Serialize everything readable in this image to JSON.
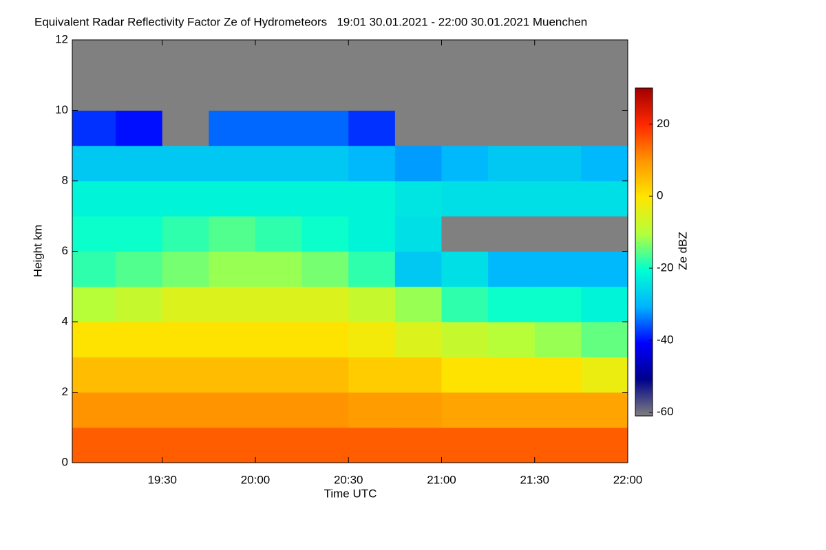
{
  "chart_data": {
    "type": "heatmap",
    "title": "Equivalent Radar Reflectivity Factor Ze of Hydrometeors   19:01 30.01.2021 - 22:00 30.01.2021 Muenchen",
    "xlabel": "Time UTC",
    "ylabel": "Height km",
    "colorbar_label": "Ze dBZ",
    "x_bins": [
      "19:01",
      "19:15",
      "19:30",
      "19:45",
      "20:00",
      "20:15",
      "20:30",
      "20:45",
      "21:00",
      "21:15",
      "21:30",
      "21:45",
      "22:00"
    ],
    "y_bins": [
      0,
      1,
      2,
      3,
      4,
      5,
      6,
      7,
      8,
      9,
      10,
      11,
      12
    ],
    "values": [
      [
        15,
        15,
        15,
        15,
        15,
        15,
        15,
        15,
        15,
        15,
        15,
        15
      ],
      [
        10,
        10,
        10,
        10,
        10,
        10,
        9,
        9,
        8,
        8,
        8,
        8
      ],
      [
        5,
        5,
        5,
        5,
        5,
        5,
        3,
        3,
        0,
        0,
        0,
        -3
      ],
      [
        0,
        0,
        0,
        0,
        0,
        0,
        -2,
        -5,
        -8,
        -10,
        -12,
        -15
      ],
      [
        -10,
        -8,
        -5,
        -5,
        -5,
        -5,
        -8,
        -12,
        -18,
        -20,
        -20,
        -22
      ],
      [
        -18,
        -16,
        -14,
        -12,
        -12,
        -14,
        -18,
        -28,
        -25,
        -30,
        -30,
        -30
      ],
      [
        -20,
        -20,
        -18,
        -16,
        -18,
        -20,
        -22,
        -25,
        null,
        null,
        null,
        null
      ],
      [
        -22,
        -22,
        -22,
        -22,
        -22,
        -22,
        -22,
        -24,
        -25,
        -25,
        -25,
        -25
      ],
      [
        -28,
        -28,
        -28,
        -28,
        -28,
        -28,
        -30,
        -32,
        -30,
        -28,
        -28,
        -30
      ],
      [
        -38,
        -40,
        null,
        -35,
        -35,
        -35,
        -38,
        null,
        null,
        null,
        null,
        null
      ],
      [
        null,
        null,
        null,
        null,
        null,
        null,
        null,
        null,
        null,
        null,
        null,
        null
      ],
      [
        null,
        null,
        null,
        null,
        null,
        null,
        null,
        null,
        null,
        null,
        null,
        null
      ]
    ],
    "xlim": [
      "19:01",
      "22:00"
    ],
    "xticks": [
      "19:30",
      "20:00",
      "20:30",
      "21:00",
      "21:30",
      "22:00"
    ],
    "ylim": [
      0,
      12
    ],
    "yticks": [
      0,
      2,
      4,
      6,
      8,
      10,
      12
    ],
    "clim": [
      -61,
      30
    ],
    "cticks": [
      -60,
      -40,
      -20,
      0,
      20
    ],
    "colormap": [
      "#7f7f7f",
      "#00008c",
      "#0000ff",
      "#00b4ff",
      "#00ffd2",
      "#b4ff3c",
      "#ffe600",
      "#ff9600",
      "#ff2800",
      "#a00000"
    ],
    "missing_color": "#808080"
  }
}
